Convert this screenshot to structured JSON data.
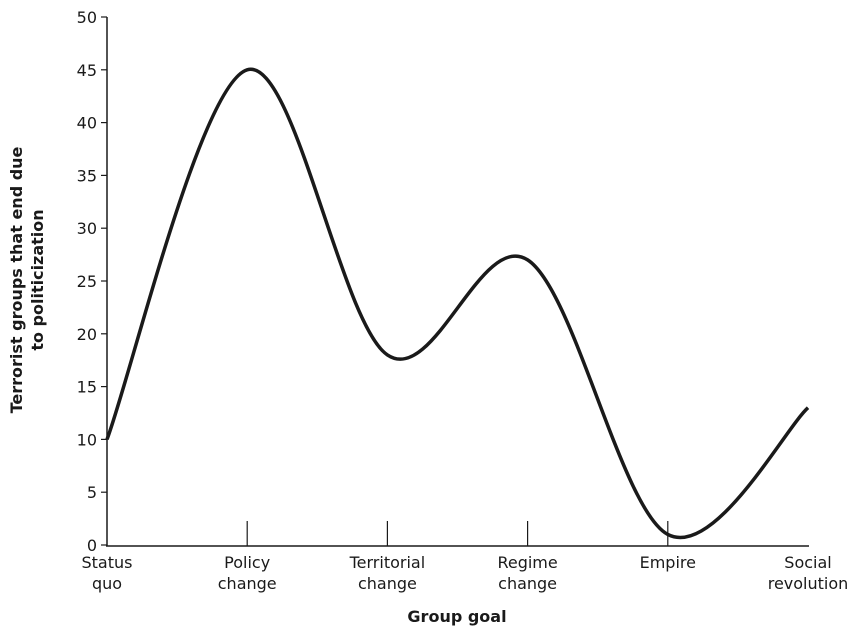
{
  "chart_data": {
    "type": "line",
    "categories": [
      "Status quo",
      "Policy change",
      "Territorial change",
      "Regime change",
      "Empire",
      "Social revolution"
    ],
    "series": [
      {
        "name": "Terrorist groups that end due to politicization",
        "color": "#1a1a1a",
        "values": [
          10,
          45,
          18,
          27,
          1,
          13
        ]
      }
    ],
    "ylim": [
      0,
      50
    ],
    "yticks": [
      0,
      5,
      10,
      15,
      20,
      25,
      30,
      35,
      40,
      45,
      50
    ],
    "xlabel": "Group goal",
    "ylabel": [
      "Terrorist groups that end due",
      "to politicization"
    ],
    "grid": false
  }
}
